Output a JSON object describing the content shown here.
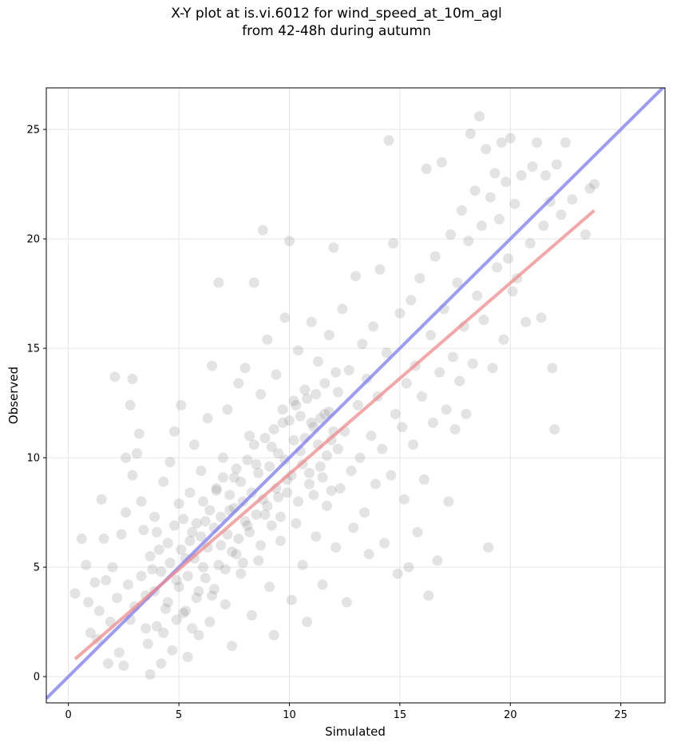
{
  "chart_data": {
    "type": "scatter",
    "title_line1": "X-Y plot at is.vi.6012 for wind_speed_at_10m_agl",
    "title_line2": "from 42-48h during autumn",
    "xlabel": "Simulated",
    "ylabel": "Observed",
    "xlim": [
      -1.0,
      27.0
    ],
    "ylim": [
      -1.2,
      26.9
    ],
    "xticks": [
      0,
      5,
      10,
      15,
      20,
      25
    ],
    "yticks": [
      0,
      5,
      10,
      15,
      20,
      25
    ],
    "grid": true,
    "colors": {
      "points": "#808080",
      "identity_line": "#7b7bf2",
      "fit_line": "#f08a8a",
      "grid": "#e6e6e6"
    },
    "identity_line": {
      "x": [
        -1.0,
        27.0
      ],
      "y": [
        -1.0,
        27.0
      ]
    },
    "fit_line": {
      "x": [
        0.3,
        23.8
      ],
      "y": [
        0.8,
        21.3
      ]
    },
    "points": [
      [
        0.3,
        3.8
      ],
      [
        0.6,
        6.3
      ],
      [
        0.8,
        5.1
      ],
      [
        0.9,
        3.4
      ],
      [
        1.0,
        2.0
      ],
      [
        1.2,
        4.3
      ],
      [
        1.3,
        1.7
      ],
      [
        1.4,
        3.0
      ],
      [
        1.5,
        8.1
      ],
      [
        1.6,
        6.3
      ],
      [
        1.7,
        4.4
      ],
      [
        1.8,
        0.6
      ],
      [
        1.9,
        2.5
      ],
      [
        2.0,
        5.0
      ],
      [
        2.1,
        13.7
      ],
      [
        2.2,
        3.6
      ],
      [
        2.3,
        1.1
      ],
      [
        2.4,
        6.5
      ],
      [
        2.5,
        0.5
      ],
      [
        2.6,
        7.5
      ],
      [
        2.7,
        4.2
      ],
      [
        2.8,
        2.6
      ],
      [
        2.9,
        9.2
      ],
      [
        2.6,
        10.0
      ],
      [
        2.8,
        12.4
      ],
      [
        2.9,
        13.6
      ],
      [
        3.1,
        10.2
      ],
      [
        3.2,
        11.1
      ],
      [
        3.3,
        8.0
      ],
      [
        3.4,
        6.7
      ],
      [
        3.5,
        3.7
      ],
      [
        3.6,
        1.5
      ],
      [
        3.7,
        0.1
      ],
      [
        3.8,
        4.9
      ],
      [
        3.9,
        7.3
      ],
      [
        4.0,
        2.3
      ],
      [
        4.1,
        5.8
      ],
      [
        4.2,
        0.6
      ],
      [
        4.3,
        8.9
      ],
      [
        4.4,
        3.1
      ],
      [
        4.5,
        6.1
      ],
      [
        4.6,
        9.8
      ],
      [
        4.7,
        1.2
      ],
      [
        4.8,
        11.2
      ],
      [
        4.9,
        4.4
      ],
      [
        5.0,
        7.9
      ],
      [
        5.1,
        12.4
      ],
      [
        5.2,
        2.9
      ],
      [
        5.3,
        5.4
      ],
      [
        5.4,
        0.9
      ],
      [
        5.5,
        8.4
      ],
      [
        5.6,
        6.6
      ],
      [
        5.7,
        10.6
      ],
      [
        5.8,
        3.6
      ],
      [
        5.9,
        1.9
      ],
      [
        6.0,
        9.4
      ],
      [
        6.1,
        5.0
      ],
      [
        6.2,
        7.1
      ],
      [
        6.3,
        11.8
      ],
      [
        6.4,
        2.5
      ],
      [
        6.5,
        14.2
      ],
      [
        6.6,
        4.0
      ],
      [
        6.7,
        8.6
      ],
      [
        6.8,
        18.0
      ],
      [
        6.9,
        6.0
      ],
      [
        7.0,
        10.0
      ],
      [
        7.1,
        3.3
      ],
      [
        7.2,
        12.2
      ],
      [
        7.3,
        7.6
      ],
      [
        7.4,
        1.4
      ],
      [
        7.5,
        9.1
      ],
      [
        7.6,
        5.6
      ],
      [
        7.7,
        13.4
      ],
      [
        7.8,
        4.7
      ],
      [
        7.9,
        8.0
      ],
      [
        8.0,
        14.1
      ],
      [
        8.1,
        6.9
      ],
      [
        8.2,
        11.0
      ],
      [
        8.3,
        2.8
      ],
      [
        8.4,
        18.0
      ],
      [
        8.5,
        9.7
      ],
      [
        8.6,
        5.3
      ],
      [
        8.7,
        12.9
      ],
      [
        8.8,
        20.4
      ],
      [
        8.9,
        7.4
      ],
      [
        9.0,
        15.4
      ],
      [
        9.1,
        4.1
      ],
      [
        9.2,
        10.5
      ],
      [
        9.3,
        1.9
      ],
      [
        9.4,
        13.8
      ],
      [
        9.5,
        8.2
      ],
      [
        9.6,
        6.2
      ],
      [
        9.7,
        11.6
      ],
      [
        9.8,
        16.4
      ],
      [
        9.9,
        9.0
      ],
      [
        10.0,
        19.9
      ],
      [
        10.1,
        3.5
      ],
      [
        10.2,
        12.6
      ],
      [
        10.3,
        7.0
      ],
      [
        10.4,
        14.9
      ],
      [
        10.5,
        10.3
      ],
      [
        10.6,
        5.1
      ],
      [
        10.7,
        13.1
      ],
      [
        10.8,
        2.5
      ],
      [
        10.9,
        8.8
      ],
      [
        11.0,
        16.2
      ],
      [
        11.1,
        11.4
      ],
      [
        11.2,
        6.4
      ],
      [
        11.3,
        14.4
      ],
      [
        11.4,
        9.6
      ],
      [
        11.5,
        4.2
      ],
      [
        11.6,
        12.0
      ],
      [
        11.7,
        7.8
      ],
      [
        11.8,
        15.6
      ],
      [
        11.9,
        10.8
      ],
      [
        12.0,
        19.6
      ],
      [
        12.1,
        5.9
      ],
      [
        12.2,
        13.0
      ],
      [
        12.3,
        8.6
      ],
      [
        12.4,
        16.8
      ],
      [
        12.5,
        11.2
      ],
      [
        12.6,
        3.4
      ],
      [
        12.7,
        14.0
      ],
      [
        12.8,
        9.4
      ],
      [
        12.9,
        6.8
      ],
      [
        13.0,
        18.3
      ],
      [
        13.1,
        12.4
      ],
      [
        13.2,
        10.0
      ],
      [
        13.3,
        15.2
      ],
      [
        13.4,
        7.5
      ],
      [
        13.5,
        13.6
      ],
      [
        13.6,
        5.6
      ],
      [
        13.7,
        11.0
      ],
      [
        13.8,
        16.0
      ],
      [
        13.9,
        8.8
      ],
      [
        14.0,
        12.8
      ],
      [
        14.1,
        18.6
      ],
      [
        14.2,
        10.4
      ],
      [
        14.3,
        6.1
      ],
      [
        14.4,
        14.8
      ],
      [
        14.5,
        24.5
      ],
      [
        14.6,
        9.2
      ],
      [
        14.7,
        19.8
      ],
      [
        14.8,
        12.0
      ],
      [
        14.9,
        4.7
      ],
      [
        15.0,
        16.6
      ],
      [
        15.1,
        11.4
      ],
      [
        15.2,
        8.1
      ],
      [
        15.3,
        13.4
      ],
      [
        15.4,
        5.0
      ],
      [
        15.5,
        17.2
      ],
      [
        15.6,
        10.6
      ],
      [
        15.7,
        14.2
      ],
      [
        15.8,
        6.6
      ],
      [
        15.9,
        18.2
      ],
      [
        16.0,
        12.8
      ],
      [
        16.1,
        9.0
      ],
      [
        16.2,
        23.2
      ],
      [
        16.3,
        3.7
      ],
      [
        16.4,
        15.6
      ],
      [
        16.5,
        11.6
      ],
      [
        16.6,
        19.2
      ],
      [
        16.7,
        5.3
      ],
      [
        16.8,
        13.9
      ],
      [
        16.9,
        23.5
      ],
      [
        17.0,
        16.8
      ],
      [
        17.1,
        12.2
      ],
      [
        17.2,
        8.0
      ],
      [
        17.3,
        20.2
      ],
      [
        17.4,
        14.6
      ],
      [
        17.5,
        11.3
      ],
      [
        17.6,
        18.0
      ],
      [
        17.7,
        13.5
      ],
      [
        17.8,
        21.3
      ],
      [
        17.9,
        16.0
      ],
      [
        18.0,
        12.0
      ],
      [
        18.1,
        19.9
      ],
      [
        18.2,
        24.8
      ],
      [
        18.3,
        14.3
      ],
      [
        18.4,
        22.2
      ],
      [
        18.5,
        17.4
      ],
      [
        18.6,
        25.6
      ],
      [
        18.7,
        20.6
      ],
      [
        18.8,
        16.3
      ],
      [
        18.9,
        24.1
      ],
      [
        19.0,
        5.9
      ],
      [
        19.1,
        21.9
      ],
      [
        19.2,
        14.1
      ],
      [
        19.3,
        23.0
      ],
      [
        19.4,
        18.7
      ],
      [
        19.5,
        20.9
      ],
      [
        19.6,
        24.4
      ],
      [
        19.7,
        15.4
      ],
      [
        19.8,
        22.6
      ],
      [
        19.9,
        19.1
      ],
      [
        20.0,
        24.6
      ],
      [
        20.1,
        17.6
      ],
      [
        20.2,
        21.6
      ],
      [
        20.3,
        18.2
      ],
      [
        20.5,
        22.9
      ],
      [
        20.7,
        16.2
      ],
      [
        20.9,
        19.8
      ],
      [
        21.0,
        23.3
      ],
      [
        21.2,
        24.4
      ],
      [
        21.4,
        16.4
      ],
      [
        21.5,
        20.6
      ],
      [
        21.6,
        22.9
      ],
      [
        21.8,
        21.7
      ],
      [
        21.9,
        14.1
      ],
      [
        22.0,
        11.3
      ],
      [
        22.1,
        23.4
      ],
      [
        22.3,
        21.1
      ],
      [
        22.5,
        24.4
      ],
      [
        22.8,
        21.8
      ],
      [
        23.4,
        20.2
      ],
      [
        23.6,
        22.3
      ],
      [
        23.8,
        22.5
      ],
      [
        3.0,
        3.2
      ],
      [
        3.3,
        4.6
      ],
      [
        3.5,
        2.2
      ],
      [
        3.7,
        5.5
      ],
      [
        3.9,
        3.9
      ],
      [
        4.0,
        6.6
      ],
      [
        4.2,
        4.8
      ],
      [
        4.3,
        2.0
      ],
      [
        4.5,
        3.4
      ],
      [
        4.6,
        5.2
      ],
      [
        4.8,
        6.9
      ],
      [
        4.9,
        2.6
      ],
      [
        5.0,
        4.1
      ],
      [
        5.1,
        5.8
      ],
      [
        5.2,
        7.2
      ],
      [
        5.3,
        3.0
      ],
      [
        5.4,
        4.6
      ],
      [
        5.5,
        6.2
      ],
      [
        5.6,
        2.2
      ],
      [
        5.7,
        5.4
      ],
      [
        5.8,
        7.0
      ],
      [
        5.9,
        3.9
      ],
      [
        6.0,
        6.4
      ],
      [
        6.1,
        8.0
      ],
      [
        6.2,
        4.5
      ],
      [
        6.3,
        5.9
      ],
      [
        6.4,
        7.6
      ],
      [
        6.5,
        3.7
      ],
      [
        6.6,
        6.8
      ],
      [
        6.7,
        8.5
      ],
      [
        6.8,
        5.1
      ],
      [
        6.9,
        7.3
      ],
      [
        7.0,
        9.1
      ],
      [
        7.1,
        4.9
      ],
      [
        7.2,
        6.5
      ],
      [
        7.3,
        8.3
      ],
      [
        7.4,
        5.7
      ],
      [
        7.5,
        7.7
      ],
      [
        7.6,
        9.5
      ],
      [
        7.7,
        6.3
      ],
      [
        7.8,
        8.9
      ],
      [
        7.9,
        5.2
      ],
      [
        8.0,
        7.1
      ],
      [
        8.1,
        9.9
      ],
      [
        8.2,
        6.6
      ],
      [
        8.3,
        8.4
      ],
      [
        8.4,
        10.6
      ],
      [
        8.5,
        7.4
      ],
      [
        8.6,
        9.3
      ],
      [
        8.7,
        6.0
      ],
      [
        8.8,
        8.1
      ],
      [
        8.9,
        10.9
      ],
      [
        9.0,
        7.8
      ],
      [
        9.1,
        9.6
      ],
      [
        9.2,
        6.9
      ],
      [
        9.3,
        11.3
      ],
      [
        9.4,
        8.6
      ],
      [
        9.5,
        10.2
      ],
      [
        9.6,
        7.3
      ],
      [
        9.7,
        12.2
      ],
      [
        9.8,
        9.9
      ],
      [
        9.9,
        8.4
      ],
      [
        10.0,
        11.7
      ],
      [
        10.1,
        9.2
      ],
      [
        10.2,
        10.8
      ],
      [
        10.3,
        12.4
      ],
      [
        10.4,
        8.0
      ],
      [
        10.5,
        11.9
      ],
      [
        10.6,
        9.7
      ],
      [
        10.7,
        10.9
      ],
      [
        10.8,
        12.7
      ],
      [
        10.9,
        9.3
      ],
      [
        11.0,
        11.6
      ],
      [
        11.1,
        8.3
      ],
      [
        11.2,
        12.9
      ],
      [
        11.3,
        10.6
      ],
      [
        11.4,
        11.8
      ],
      [
        11.5,
        9.1
      ],
      [
        11.6,
        13.4
      ],
      [
        11.7,
        10.1
      ],
      [
        11.8,
        12.1
      ],
      [
        11.9,
        8.5
      ],
      [
        12.0,
        11.2
      ],
      [
        12.1,
        13.9
      ],
      [
        12.2,
        10.4
      ]
    ]
  }
}
